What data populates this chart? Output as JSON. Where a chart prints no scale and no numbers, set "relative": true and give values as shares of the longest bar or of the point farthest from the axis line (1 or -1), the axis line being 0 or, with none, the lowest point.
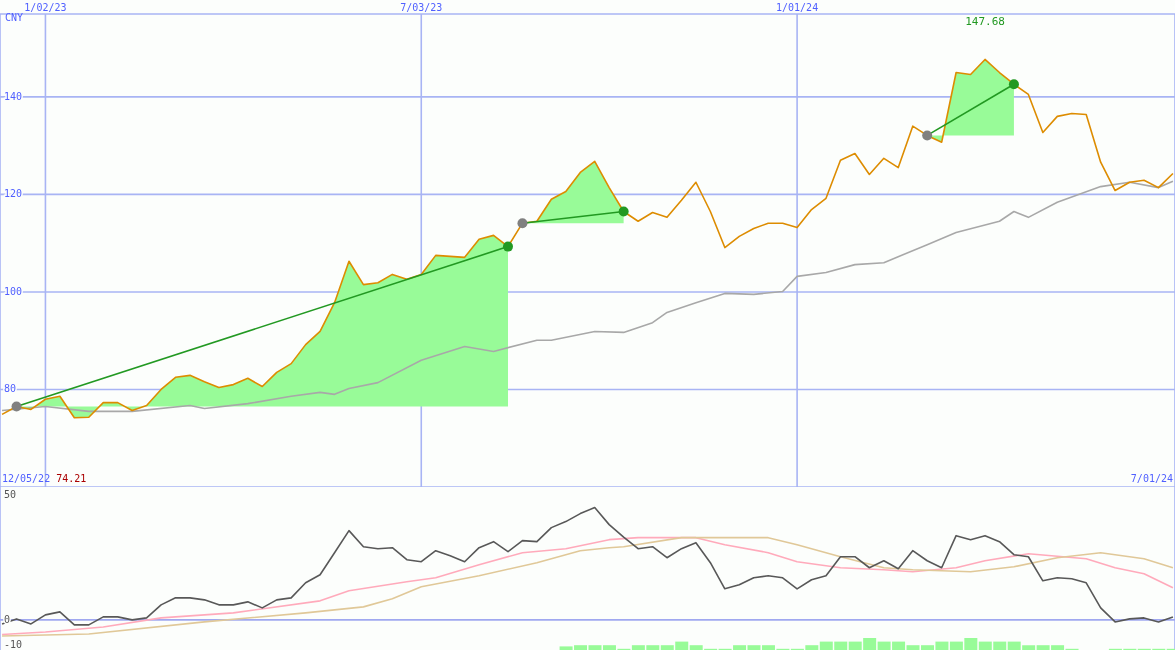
{
  "chart_data": [
    {
      "type": "line",
      "ylabel": "CNY",
      "grid": true,
      "xlim": [
        "2022-12-11",
        "2024-07-02"
      ],
      "ylim": [
        60,
        157
      ],
      "xticks": [
        {
          "value": "2023-01-02",
          "label": "1/02/23"
        },
        {
          "value": "2023-07-03",
          "label": "7/03/23"
        },
        {
          "value": "2024-01-01",
          "label": "1/01/24"
        }
      ],
      "yticks": [
        80,
        100,
        120,
        140
      ],
      "x": [
        "2022-12-12",
        "2022-12-19",
        "2022-12-26",
        "2023-01-02",
        "2023-01-09",
        "2023-01-16",
        "2023-01-23",
        "2023-01-30",
        "2023-02-06",
        "2023-02-13",
        "2023-02-20",
        "2023-02-27",
        "2023-03-06",
        "2023-03-13",
        "2023-03-20",
        "2023-03-27",
        "2023-04-03",
        "2023-04-10",
        "2023-04-17",
        "2023-04-24",
        "2023-05-01",
        "2023-05-08",
        "2023-05-15",
        "2023-05-22",
        "2023-05-29",
        "2023-06-05",
        "2023-06-12",
        "2023-06-19",
        "2023-06-26",
        "2023-07-03",
        "2023-07-10",
        "2023-07-17",
        "2023-07-24",
        "2023-07-31",
        "2023-08-07",
        "2023-08-14",
        "2023-08-21",
        "2023-08-28",
        "2023-09-04",
        "2023-09-11",
        "2023-09-18",
        "2023-09-25",
        "2023-10-02",
        "2023-10-09",
        "2023-10-16",
        "2023-10-23",
        "2023-10-30",
        "2023-11-06",
        "2023-11-13",
        "2023-11-20",
        "2023-11-27",
        "2023-12-04",
        "2023-12-11",
        "2023-12-18",
        "2023-12-25",
        "2024-01-01",
        "2024-01-08",
        "2024-01-15",
        "2024-01-22",
        "2024-01-29",
        "2024-02-05",
        "2024-02-12",
        "2024-02-19",
        "2024-02-26",
        "2024-03-04",
        "2024-03-11",
        "2024-03-18",
        "2024-03-25",
        "2024-04-01",
        "2024-04-08",
        "2024-04-15",
        "2024-04-22",
        "2024-04-29",
        "2024-05-06",
        "2024-05-13",
        "2024-05-20",
        "2024-05-27",
        "2024-06-03",
        "2024-06-10",
        "2024-06-17",
        "2024-06-24",
        "2024-07-01"
      ],
      "series": [
        {
          "color": "#a8a8a8",
          "x": [
            "2022-12-12",
            "2023-01-02",
            "2023-01-23",
            "2023-02-13",
            "2023-03-13",
            "2023-03-20",
            "2023-04-10",
            "2023-05-01",
            "2023-05-15",
            "2023-05-22",
            "2023-05-29",
            "2023-06-12",
            "2023-07-03",
            "2023-07-24",
            "2023-08-07",
            "2023-08-28",
            "2023-09-04",
            "2023-09-25",
            "2023-10-09",
            "2023-10-23",
            "2023-10-30",
            "2023-11-13",
            "2023-11-27",
            "2023-12-11",
            "2023-12-25",
            "2024-01-01",
            "2024-01-15",
            "2024-01-29",
            "2024-02-12",
            "2024-03-04",
            "2024-03-18",
            "2024-04-08",
            "2024-04-15",
            "2024-04-22",
            "2024-05-06",
            "2024-05-27",
            "2024-06-10",
            "2024-06-24",
            "2024-07-01"
          ],
          "values": [
            75.7,
            76.5,
            75.5,
            75.5,
            76.7,
            76.1,
            77.1,
            78.6,
            79.4,
            79.0,
            80.2,
            81.4,
            86.0,
            88.8,
            87.8,
            90.1,
            90.1,
            91.9,
            91.7,
            93.7,
            95.8,
            97.8,
            99.7,
            99.5,
            100.1,
            103.2,
            104.0,
            105.6,
            106.0,
            109.7,
            112.2,
            114.5,
            116.5,
            115.3,
            118.4,
            121.6,
            122.5,
            121.4,
            122.7
          ]
        },
        {
          "color": "#dd8c00",
          "values": [
            74.9,
            76.5,
            75.9,
            78.0,
            78.6,
            74.21,
            74.3,
            77.3,
            77.3,
            75.7,
            76.7,
            80.0,
            82.5,
            82.9,
            81.6,
            80.4,
            81.0,
            82.3,
            80.6,
            83.5,
            85.3,
            89.2,
            91.9,
            97.8,
            106.3,
            101.5,
            101.9,
            103.6,
            102.6,
            103.6,
            107.5,
            107.3,
            107.1,
            110.8,
            111.6,
            109.3,
            114.1,
            114.5,
            119.0,
            120.6,
            124.5,
            126.8,
            121.4,
            116.5,
            114.5,
            116.3,
            115.3,
            118.8,
            122.5,
            116.5,
            109.1,
            111.4,
            113.0,
            114.1,
            114.1,
            113.2,
            116.9,
            119.2,
            127.0,
            128.4,
            124.1,
            127.4,
            125.5,
            134.0,
            132.1,
            130.7,
            145.0,
            144.6,
            147.68,
            145.0,
            142.6,
            140.5,
            132.7,
            136.0,
            136.6,
            136.4,
            126.6,
            120.8,
            122.5,
            122.9,
            121.4,
            124.3
          ],
          "lower": [
            null,
            76.5,
            76.5,
            76.5,
            76.5,
            76.5,
            76.5,
            76.5,
            76.5,
            76.5,
            76.5,
            76.5,
            76.5,
            76.5,
            76.5,
            76.5,
            76.5,
            76.5,
            76.5,
            76.5,
            76.5,
            76.5,
            76.5,
            76.5,
            76.5,
            76.5,
            76.5,
            76.5,
            76.5,
            76.5,
            76.5,
            76.5,
            76.5,
            76.5,
            76.5,
            76.5,
            114.1,
            114.1,
            114.1,
            114.1,
            114.1,
            114.1,
            114.1,
            114.1,
            null,
            null,
            null,
            null,
            null,
            null,
            null,
            null,
            null,
            null,
            null,
            null,
            null,
            null,
            null,
            null,
            null,
            null,
            null,
            null,
            132.1,
            132.1,
            132.1,
            132.1,
            132.1,
            132.1,
            132.1,
            null,
            null,
            null,
            null,
            null,
            null,
            null,
            null,
            null,
            null,
            null
          ],
          "upper": [
            null,
            76.5,
            75.9,
            78.0,
            78.6,
            74.21,
            74.3,
            77.3,
            77.3,
            75.7,
            76.7,
            80.0,
            82.5,
            82.9,
            81.6,
            80.4,
            81.0,
            82.3,
            80.6,
            83.5,
            85.3,
            89.2,
            91.9,
            97.8,
            106.3,
            101.5,
            101.9,
            103.6,
            102.6,
            103.6,
            107.5,
            107.3,
            107.1,
            110.8,
            111.6,
            109.3,
            114.1,
            114.5,
            119.0,
            120.6,
            124.5,
            126.8,
            121.4,
            116.5,
            null,
            null,
            null,
            null,
            null,
            null,
            null,
            null,
            null,
            null,
            null,
            null,
            null,
            null,
            null,
            null,
            null,
            null,
            null,
            null,
            132.1,
            130.7,
            145.0,
            144.6,
            147.68,
            145.0,
            142.6,
            null,
            null,
            null,
            null,
            null,
            null,
            null,
            null,
            null,
            null,
            null
          ]
        },
        {
          "color": "#229922",
          "marker": "circle",
          "x": [
            "2022-12-19",
            "2023-08-14"
          ],
          "values": [
            76.5,
            109.3
          ],
          "colors": [
            "#808080",
            "#229922"
          ]
        },
        {
          "color": "#229922",
          "marker": "circle",
          "x": [
            "2023-08-21",
            "2023-10-09"
          ],
          "values": [
            114.1,
            116.5
          ],
          "colors": [
            "#808080",
            "#229922"
          ]
        },
        {
          "color": "#229922",
          "marker": "circle",
          "x": [
            "2024-03-04",
            "2024-04-15"
          ],
          "values": [
            132.1,
            142.6
          ],
          "colors": [
            "#808080",
            "#229922"
          ]
        }
      ],
      "annotations": [
        "12/05/22",
        "74.21",
        "7/01/24",
        {
          "text": "147.68",
          "x": "2024-04-01",
          "y": 147.68
        }
      ]
    },
    {
      "type": "line",
      "grid": "x",
      "tick_labels": "y",
      "xlim": [
        "2022-12-11",
        "2024-07-02"
      ],
      "ylim": [
        -12,
        53
      ],
      "xticks": [
        {
          "value": "2023-01-02",
          "label": null
        },
        {
          "value": "2023-07-03",
          "label": null
        },
        {
          "value": "2024-01-01",
          "label": null
        }
      ],
      "yticks": [
        -10,
        0,
        50
      ],
      "ref_lines": [
        {
          "axis": "y",
          "value": 0,
          "color": "#a0a8f0"
        }
      ],
      "x": [
        "2022-12-12",
        "2022-12-19",
        "2022-12-26",
        "2023-01-02",
        "2023-01-09",
        "2023-01-16",
        "2023-01-23",
        "2023-01-30",
        "2023-02-06",
        "2023-02-13",
        "2023-02-20",
        "2023-02-27",
        "2023-03-06",
        "2023-03-13",
        "2023-03-20",
        "2023-03-27",
        "2023-04-03",
        "2023-04-10",
        "2023-04-17",
        "2023-04-24",
        "2023-05-01",
        "2023-05-08",
        "2023-05-15",
        "2023-05-22",
        "2023-05-29",
        "2023-06-05",
        "2023-06-12",
        "2023-06-19",
        "2023-06-26",
        "2023-07-03",
        "2023-07-10",
        "2023-07-17",
        "2023-07-24",
        "2023-07-31",
        "2023-08-07",
        "2023-08-14",
        "2023-08-21",
        "2023-08-28",
        "2023-09-04",
        "2023-09-11",
        "2023-09-18",
        "2023-09-25",
        "2023-10-02",
        "2023-10-09",
        "2023-10-16",
        "2023-10-23",
        "2023-10-30",
        "2023-11-06",
        "2023-11-13",
        "2023-11-20",
        "2023-11-27",
        "2023-12-04",
        "2023-12-11",
        "2023-12-18",
        "2023-12-25",
        "2024-01-01",
        "2024-01-08",
        "2024-01-15",
        "2024-01-22",
        "2024-01-29",
        "2024-02-05",
        "2024-02-12",
        "2024-02-19",
        "2024-02-26",
        "2024-03-04",
        "2024-03-11",
        "2024-03-18",
        "2024-03-25",
        "2024-04-01",
        "2024-04-08",
        "2024-04-15",
        "2024-04-22",
        "2024-04-29",
        "2024-05-06",
        "2024-05-13",
        "2024-05-20",
        "2024-05-27",
        "2024-06-03",
        "2024-06-10",
        "2024-06-17",
        "2024-06-24",
        "2024-07-01"
      ],
      "series": [
        {
          "color": "#ffaabb",
          "x": [
            "2022-12-12",
            "2023-01-02",
            "2023-01-30",
            "2023-02-27",
            "2023-04-03",
            "2023-05-15",
            "2023-05-29",
            "2023-06-26",
            "2023-07-10",
            "2023-07-31",
            "2023-08-21",
            "2023-09-11",
            "2023-10-02",
            "2023-10-16",
            "2023-11-13",
            "2023-11-27",
            "2023-12-18",
            "2024-01-01",
            "2024-01-22",
            "2024-02-12",
            "2024-02-26",
            "2024-03-18",
            "2024-04-01",
            "2024-04-22",
            "2024-05-20",
            "2024-06-03",
            "2024-06-17",
            "2024-07-01"
          ],
          "values": [
            -5.8,
            -4.8,
            -2.8,
            0.8,
            2.8,
            7.6,
            11.6,
            15.2,
            16.8,
            22.0,
            26.8,
            28.4,
            32.0,
            32.8,
            32.8,
            30.0,
            26.8,
            23.2,
            20.8,
            20.0,
            19.2,
            20.8,
            23.6,
            26.4,
            24.4,
            20.8,
            18.4,
            12.8
          ]
        },
        {
          "color": "#e0c898",
          "x": [
            "2022-12-12",
            "2023-01-23",
            "2023-03-20",
            "2023-05-08",
            "2023-06-05",
            "2023-06-19",
            "2023-07-03",
            "2023-07-31",
            "2023-08-28",
            "2023-09-18",
            "2023-10-02",
            "2023-10-09",
            "2023-11-06",
            "2023-12-18",
            "2024-01-01",
            "2024-01-22",
            "2024-02-12",
            "2024-02-26",
            "2024-03-25",
            "2024-04-15",
            "2024-05-06",
            "2024-05-27",
            "2024-06-10",
            "2024-06-17",
            "2024-07-01"
          ],
          "values": [
            -6.4,
            -5.6,
            -0.8,
            2.8,
            5.2,
            8.4,
            13.2,
            17.6,
            22.8,
            27.6,
            28.8,
            29.2,
            32.8,
            32.8,
            30.0,
            25.2,
            20.8,
            20.0,
            19.2,
            21.2,
            24.8,
            26.8,
            25.2,
            24.4,
            20.8
          ]
        },
        {
          "color": "#585858",
          "values": [
            -1.6,
            0.4,
            -1.6,
            2.0,
            3.2,
            -2.0,
            -2.0,
            1.2,
            1.2,
            0,
            0.8,
            6.0,
            8.8,
            8.8,
            8.0,
            6.0,
            6.0,
            7.2,
            4.8,
            8.0,
            8.8,
            14.8,
            18.0,
            26.8,
            35.6,
            29.2,
            28.4,
            28.8,
            24.0,
            23.2,
            27.6,
            25.6,
            23.2,
            28.8,
            31.2,
            27.2,
            31.6,
            31.2,
            36.8,
            39.2,
            42.4,
            44.8,
            38.0,
            33.0,
            28.4,
            29.2,
            24.8,
            28.4,
            30.8,
            22.8,
            12.4,
            14.0,
            16.8,
            17.6,
            16.8,
            12.4,
            16.0,
            17.6,
            25.2,
            25.2,
            20.8,
            23.6,
            20.4,
            27.6,
            23.6,
            20.8,
            33.6,
            32.0,
            33.6,
            31.2,
            26.0,
            25.2,
            15.6,
            16.8,
            16.4,
            14.8,
            4.8,
            -0.8,
            0.4,
            0.8,
            -0.8,
            1.2
          ]
        }
      ]
    },
    {
      "type": "bar",
      "relative": true,
      "tick_labels": false,
      "color": "#98fb98",
      "xlim": [
        "2022-12-11",
        "2024-07-02"
      ],
      "x": [
        "2023-09-11",
        "2023-09-18",
        "2023-09-25",
        "2023-10-02",
        "2023-10-09",
        "2023-10-16",
        "2023-10-23",
        "2023-10-30",
        "2023-11-06",
        "2023-11-13",
        "2023-11-20",
        "2023-11-27",
        "2023-12-04",
        "2023-12-11",
        "2023-12-18",
        "2023-12-25",
        "2024-01-01",
        "2024-01-08",
        "2024-01-15",
        "2024-01-22",
        "2024-01-29",
        "2024-02-05",
        "2024-02-12",
        "2024-02-19",
        "2024-02-26",
        "2024-03-04",
        "2024-03-11",
        "2024-03-18",
        "2024-03-25",
        "2024-04-01",
        "2024-04-08",
        "2024-04-15",
        "2024-04-22",
        "2024-04-29",
        "2024-05-06",
        "2024-05-13",
        "2024-05-20",
        "2024-05-27",
        "2024-06-03",
        "2024-06-10",
        "2024-06-17",
        "2024-06-24",
        "2024-07-01"
      ],
      "values": [
        0.3,
        0.4,
        0.4,
        0.4,
        0.1,
        0.4,
        0.4,
        0.4,
        0.7,
        0.4,
        0.1,
        0.1,
        0.4,
        0.4,
        0.4,
        0.1,
        0.1,
        0.4,
        0.7,
        0.7,
        0.7,
        1,
        0.7,
        0.7,
        0.4,
        0.4,
        0.7,
        0.7,
        1,
        0.7,
        0.7,
        0.7,
        0.4,
        0.4,
        0.4,
        0.1,
        0,
        0,
        0.1,
        0.1,
        0.1,
        0.1,
        0.1
      ]
    }
  ]
}
